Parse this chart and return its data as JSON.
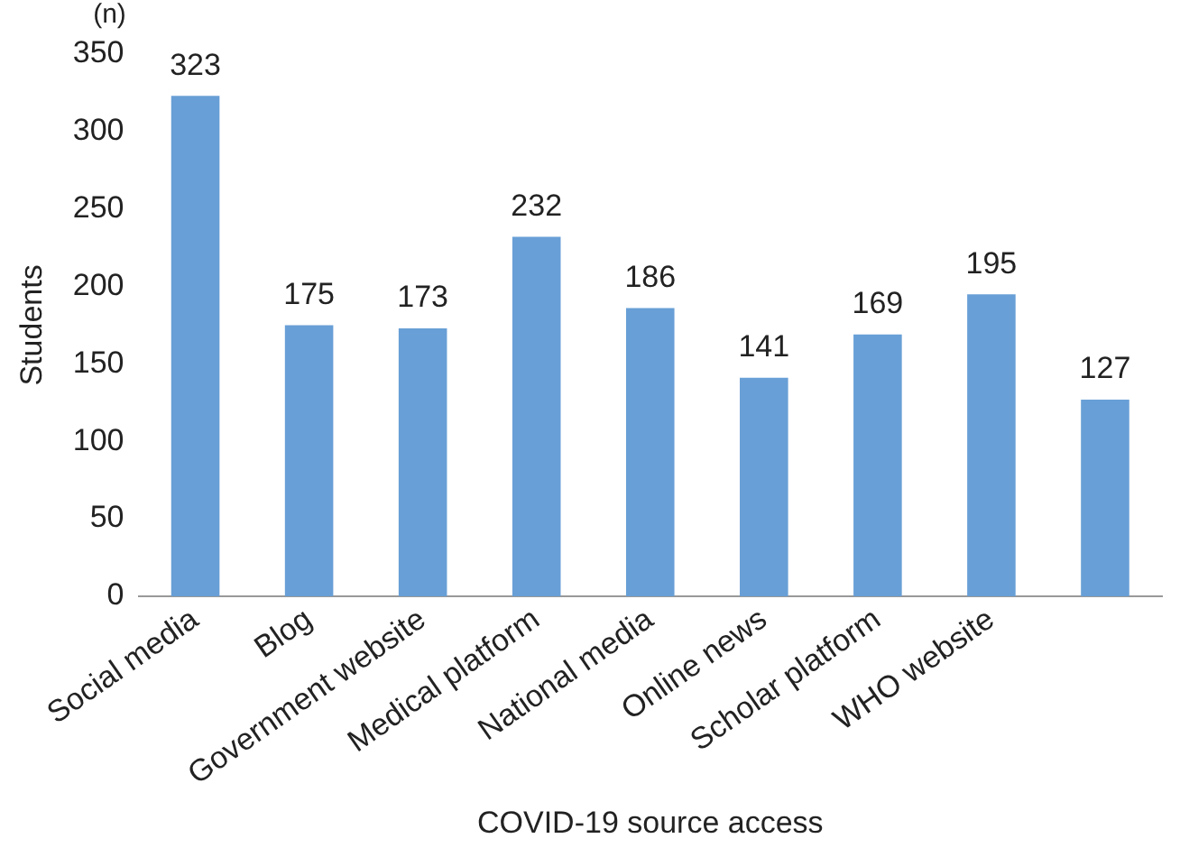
{
  "chart_data": {
    "type": "bar",
    "categories": [
      "Social media",
      "Blog",
      "Government website",
      "Medical platform",
      "National media",
      "Online news",
      "Scholar platform",
      "WHO website",
      null
    ],
    "values": [
      323,
      175,
      173,
      232,
      186,
      141,
      169,
      195,
      127
    ],
    "color": "#689fd6",
    "xlabel": "COVID-19 source access",
    "ylabel": "Students",
    "annotations": [
      "(n)"
    ],
    "ylim": [
      0,
      350
    ],
    "yticks": [
      0,
      50,
      100,
      150,
      200,
      250,
      300,
      350
    ],
    "grid": false,
    "legend": false,
    "data_labels": true
  }
}
